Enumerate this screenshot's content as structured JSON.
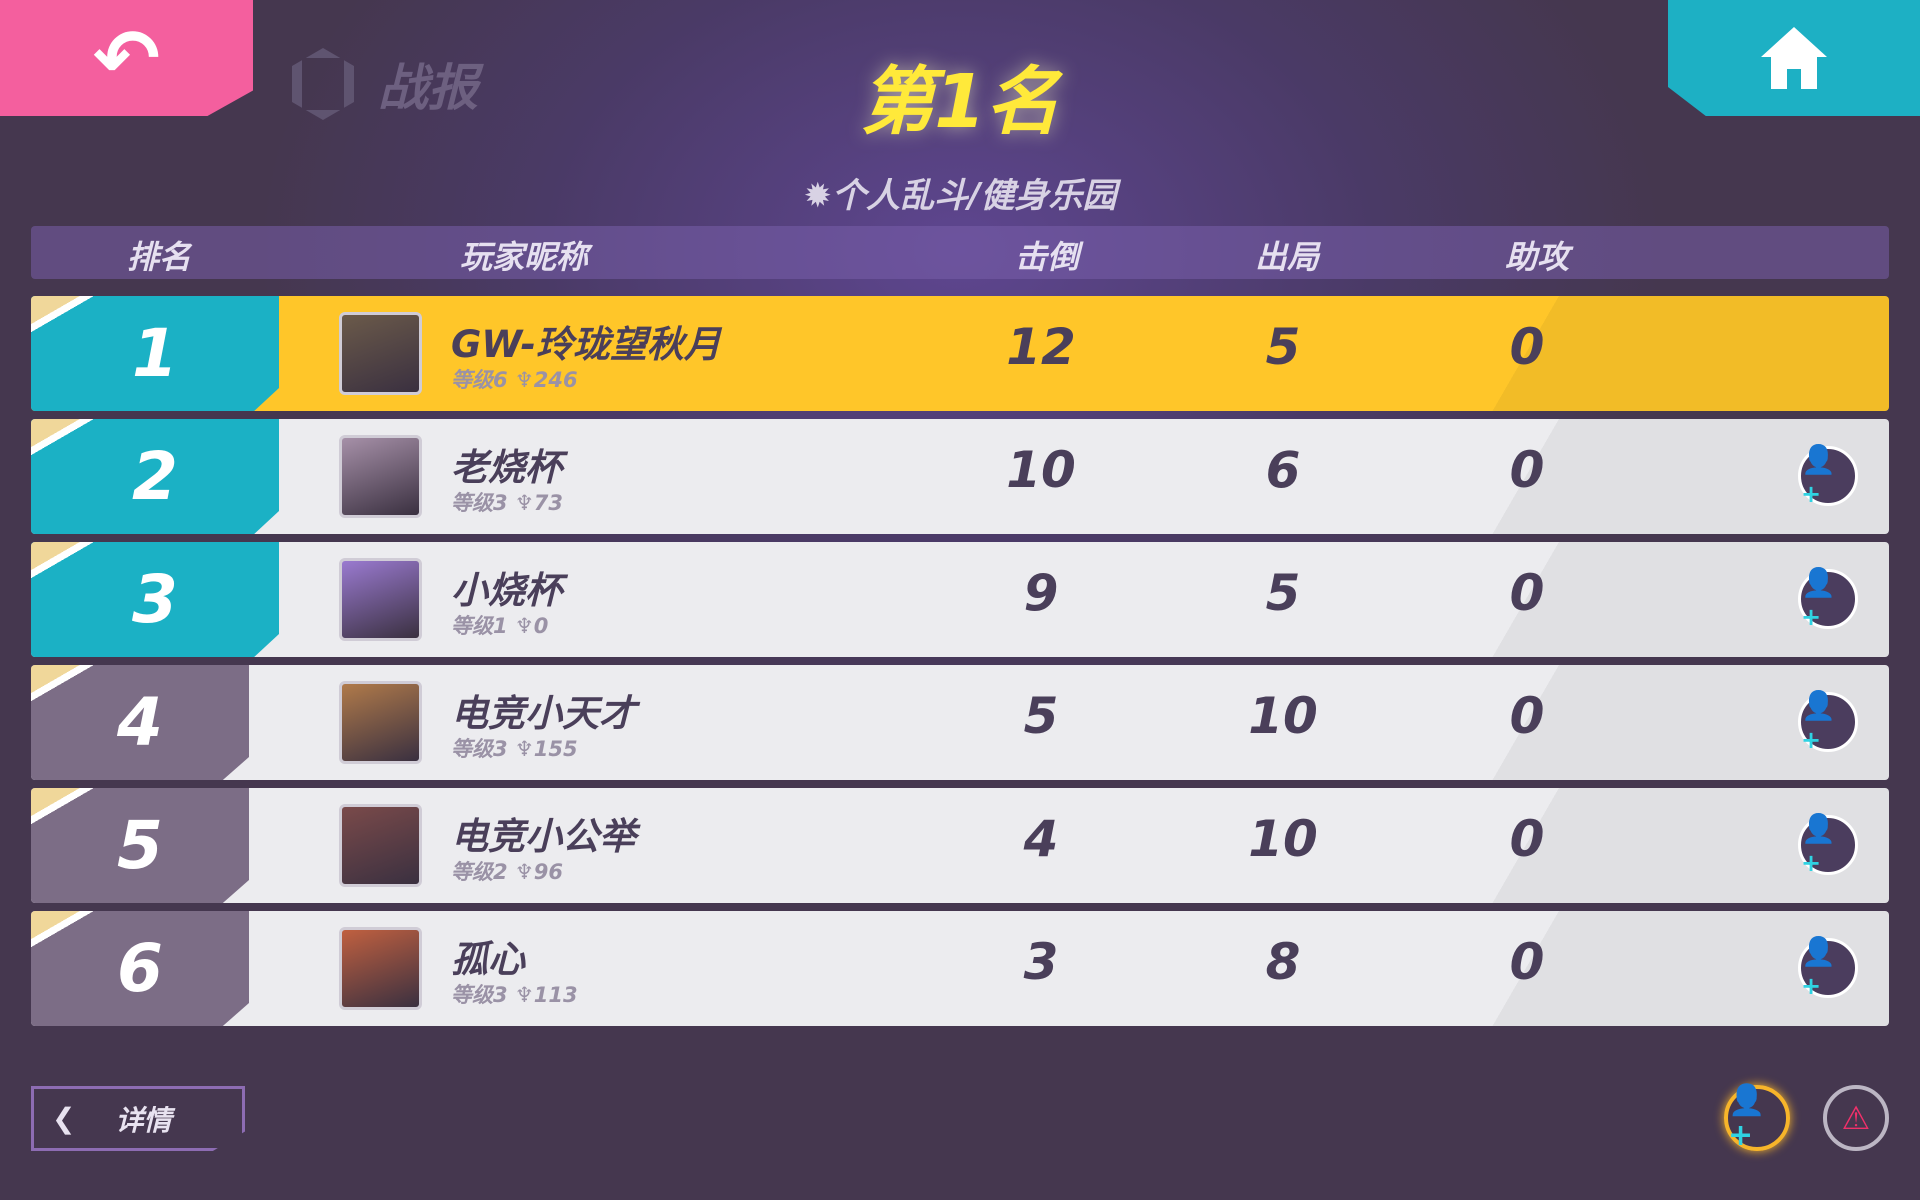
{
  "header": {
    "back_icon": "undo-arrow-icon",
    "home_icon": "home-icon",
    "section_title": "战报",
    "result_title": "第1名",
    "mode": "个人乱斗/健身乐园"
  },
  "columns": {
    "rank": "排名",
    "player": "玩家昵称",
    "kills": "击倒",
    "deaths": "出局",
    "assists": "助攻"
  },
  "rows": [
    {
      "rank": "1",
      "name": "GW-玲珑望秋月",
      "level": "等级6",
      "trophy": "246",
      "kills": "12",
      "deaths": "5",
      "assists": "0",
      "highlight": true
    },
    {
      "rank": "2",
      "name": "老烧杯",
      "level": "等级3",
      "trophy": "73",
      "kills": "10",
      "deaths": "6",
      "assists": "0"
    },
    {
      "rank": "3",
      "name": "小烧杯",
      "level": "等级1",
      "trophy": "0",
      "kills": "9",
      "deaths": "5",
      "assists": "0"
    },
    {
      "rank": "4",
      "name": "电竞小天才",
      "level": "等级3",
      "trophy": "155",
      "kills": "5",
      "deaths": "10",
      "assists": "0"
    },
    {
      "rank": "5",
      "name": "电竞小公举",
      "level": "等级2",
      "trophy": "96",
      "kills": "4",
      "deaths": "10",
      "assists": "0"
    },
    {
      "rank": "6",
      "name": "孤心",
      "level": "等级3",
      "trophy": "113",
      "kills": "3",
      "deaths": "8",
      "assists": "0"
    }
  ],
  "footer": {
    "details_label": "详情"
  },
  "colors": {
    "pink": "#f45f9e",
    "teal": "#1bb1c5",
    "gold": "#ffc629",
    "title_yellow": "#ffe93a"
  }
}
